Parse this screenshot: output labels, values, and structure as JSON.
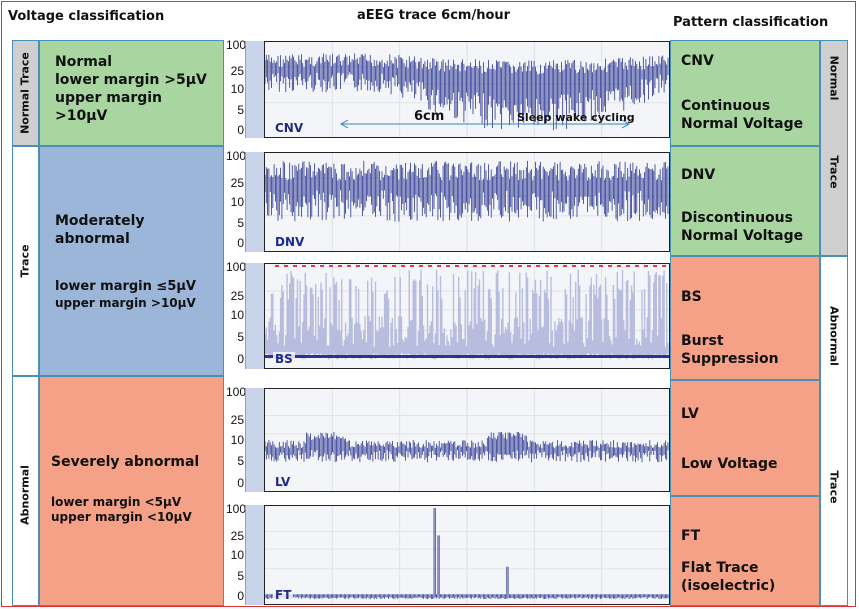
{
  "headers": {
    "voltage": "Voltage classification",
    "trace": "aEEG trace 6cm/hour",
    "pattern": "Pattern classification"
  },
  "left_side": {
    "normal_trace": "Normal Trace",
    "trace": "Trace",
    "abnormal": "Abnormal"
  },
  "voltage_classes": {
    "normal": {
      "title": "Normal",
      "lines": [
        "lower margin >5µV",
        "upper margin",
        ">10µV"
      ]
    },
    "moderate": {
      "title_lines": [
        "Moderately",
        "abnormal"
      ],
      "lines": [
        "lower margin ≤5µV",
        "upper margin >10µV"
      ]
    },
    "severe": {
      "title": "Severely abnormal",
      "lines": [
        "lower margin <5µV",
        "upper margin <10µV"
      ]
    }
  },
  "trace_axis_ticks": [
    "100",
    "25",
    "10",
    "5",
    "0"
  ],
  "traces": [
    {
      "code": "CNV",
      "style": "dense-dip"
    },
    {
      "code": "DNV",
      "style": "dense"
    },
    {
      "code": "BS",
      "style": "burst"
    },
    {
      "code": "LV",
      "style": "low"
    },
    {
      "code": "FT",
      "style": "flat"
    }
  ],
  "annotation": {
    "scale": "6cm",
    "note": "Sleep wake cycling"
  },
  "patterns": [
    {
      "code": "CNV",
      "lines": [
        "Continuous",
        "Normal Voltage"
      ]
    },
    {
      "code": "DNV",
      "lines": [
        "Discontinuous",
        "Normal Voltage"
      ]
    },
    {
      "code": "BS",
      "lines": [
        "Burst",
        "Suppression"
      ]
    },
    {
      "code": "LV",
      "lines": [
        "Low Voltage"
      ]
    },
    {
      "code": "FT",
      "lines": [
        "Flat Trace",
        "(isoelectric)"
      ]
    }
  ],
  "right_side": {
    "normal": "Normal",
    "trace_top": "Trace",
    "abnormal": "Abnormal",
    "trace_bottom": "Trace"
  },
  "colors": {
    "normal": "#a8d5a0",
    "moderate": "#9cb6da",
    "abnormal": "#f4a187",
    "trace_line": "#2a3590",
    "burst_fill": "#b8bde0"
  }
}
